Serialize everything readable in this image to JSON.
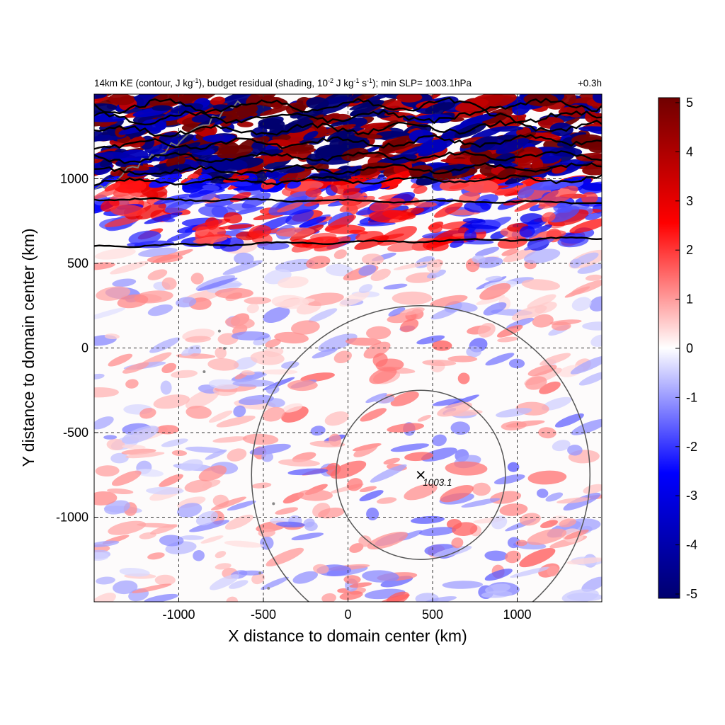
{
  "chart_data": {
    "type": "heatmap",
    "title_left": {
      "part1": "14km KE (contour, J kg",
      "sup1": "-1",
      "part2": "), budget residual (shading, 10",
      "sup2": "-2",
      "part3": " J kg",
      "sup3": "-1",
      "part4": " s",
      "sup4": "-1",
      "part5": "); min SLP= 1003.1hPa"
    },
    "title_right": "+0.3h",
    "xlabel": "X distance to domain center (km)",
    "ylabel": "Y distance to domain center (km)",
    "xlim": [
      -1500,
      1500
    ],
    "ylim": [
      -1500,
      1500
    ],
    "xticks": [
      -1000,
      -500,
      0,
      500,
      1000
    ],
    "yticks": [
      -1000,
      -500,
      0,
      500,
      1000
    ],
    "grid": true,
    "colorbar": {
      "range": [
        -5,
        5
      ],
      "ticks": [
        5,
        4,
        3,
        2,
        1,
        0,
        -1,
        -2,
        -3,
        -4,
        -5
      ],
      "colors": [
        "#00006e",
        "#0000ff",
        "#ffffff",
        "#ff0000",
        "#700000"
      ]
    },
    "storm_center": {
      "x": 430,
      "y": -750,
      "label": "1003.1"
    },
    "radius_rings_km": [
      500,
      1000
    ],
    "ke_contours_y_at_edges": [
      [
        600,
        650
      ],
      [
        880,
        860
      ],
      [
        980,
        1000
      ],
      [
        1040,
        1070
      ],
      [
        1120,
        1140
      ],
      [
        1200,
        1230
      ],
      [
        1280,
        1310
      ],
      [
        1360,
        1370
      ],
      [
        1430,
        1440
      ]
    ]
  }
}
